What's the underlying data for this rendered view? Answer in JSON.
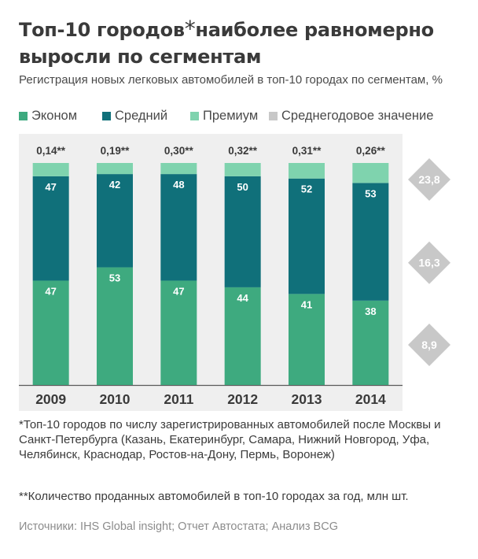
{
  "header": {
    "title_main": "Топ-10 городов",
    "title_star": "*",
    "title_rest": "наиболее равномерно выросли по сегментам",
    "subtitle": "Регистрация новых легковых автомобилей в топ-10 городах по сегментам, %"
  },
  "legend": {
    "items": [
      {
        "label": "Эконом",
        "color": "#3eaa7f"
      },
      {
        "label": "Средний",
        "color": "#10707a"
      },
      {
        "label": "Премиум",
        "color": "#7fd3ae"
      },
      {
        "label": "Среднегодовое значение",
        "color": "#c8c8c8"
      }
    ]
  },
  "chart_data": {
    "type": "bar",
    "stacked": true,
    "categories": [
      "2009",
      "2010",
      "2011",
      "2012",
      "2013",
      "2014"
    ],
    "series": [
      {
        "name": "Эконом",
        "color": "#3eaa7f",
        "values": [
          47,
          53,
          47,
          44,
          41,
          38
        ],
        "labels": [
          "47",
          "53",
          "47",
          "44",
          "41",
          "38"
        ]
      },
      {
        "name": "Средний",
        "color": "#10707a",
        "values": [
          47,
          42,
          48,
          50,
          52,
          53
        ],
        "labels": [
          "47",
          "42",
          "48",
          "50",
          "52",
          "53"
        ]
      },
      {
        "name": "Премиум",
        "color": "#7fd3ae",
        "values": [
          6,
          5,
          5,
          6,
          7,
          9
        ]
      }
    ],
    "top_labels": [
      "0,14**",
      "0,19**",
      "0,30**",
      "0,32**",
      "0,31**",
      "0,26**"
    ],
    "averages": [
      {
        "label": "23,8",
        "value": 23.8
      },
      {
        "label": "16,3",
        "value": 16.3
      },
      {
        "label": "8,9",
        "value": 8.9
      }
    ],
    "ylim": [
      0,
      100
    ],
    "grid": false
  },
  "footnotes": {
    "note1": "*Топ-10 городов по числу зарегистрированных автомобилей после Москвы и Санкт-Петербурга (Казань, Екатеринбург, Самара, Нижний Новгород, Уфа, Челябинск, Краснодар, Ростов-на-Дону, Пермь, Воронеж)",
    "note2": "**Количество проданных автомобилей в топ-10 городах за год, млн шт.",
    "source": "Источники: IHS Global insight; Отчет Автостата; Анализ BCG"
  }
}
